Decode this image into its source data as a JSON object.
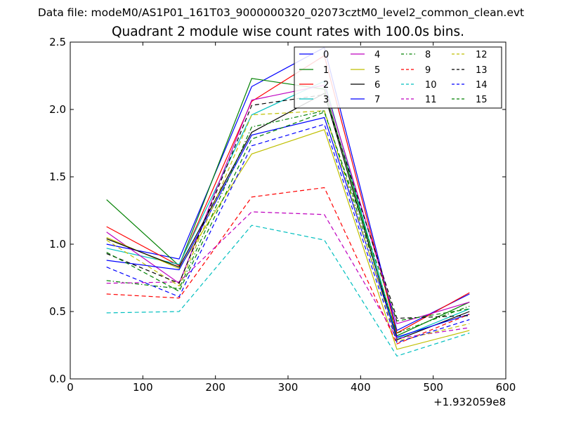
{
  "suptitle": "Data file: modeM0/AS1P01_161T03_9000000320_02073cztM0_level2_common_clean.evt",
  "chart_data": {
    "type": "line",
    "title": "Quadrant 2 module wise count rates with 100.0s bins.",
    "xlabel": "",
    "ylabel": "",
    "x_offset_label": "+1.932059e8",
    "xlim": [
      0,
      600
    ],
    "ylim": [
      0.0,
      2.5
    ],
    "xticks": [
      "0",
      "100",
      "200",
      "300",
      "400",
      "500",
      "600"
    ],
    "yticks": [
      "0.0",
      "0.5",
      "1.0",
      "1.5",
      "2.0",
      "2.5"
    ],
    "grid": false,
    "legend_position": "top-right",
    "legend_columns": 4,
    "x": [
      50,
      150,
      250,
      350,
      450,
      550
    ],
    "series": [
      {
        "name": "0",
        "color": "#0000ff",
        "dash": "solid",
        "values": [
          1.0,
          0.89,
          2.17,
          2.46,
          0.36,
          0.63
        ]
      },
      {
        "name": "1",
        "color": "#008000",
        "dash": "solid",
        "values": [
          1.33,
          0.84,
          2.23,
          2.15,
          0.32,
          0.57
        ]
      },
      {
        "name": "2",
        "color": "#ff0000",
        "dash": "solid",
        "values": [
          1.13,
          0.84,
          2.06,
          2.4,
          0.34,
          0.64
        ]
      },
      {
        "name": "3",
        "color": "#00bfbf",
        "dash": "solid",
        "values": [
          0.97,
          0.85,
          1.96,
          2.21,
          0.3,
          0.52
        ]
      },
      {
        "name": "4",
        "color": "#bf00bf",
        "dash": "solid",
        "values": [
          1.09,
          0.71,
          2.07,
          2.18,
          0.41,
          0.57
        ]
      },
      {
        "name": "5",
        "color": "#bfbf00",
        "dash": "solid",
        "values": [
          1.05,
          0.82,
          1.67,
          1.85,
          0.22,
          0.36
        ]
      },
      {
        "name": "6",
        "color": "#000000",
        "dash": "solid",
        "values": [
          1.04,
          0.83,
          1.83,
          2.12,
          0.29,
          0.5
        ]
      },
      {
        "name": "7",
        "color": "#0000ff",
        "dash": "solid",
        "values": [
          0.88,
          0.81,
          1.81,
          1.94,
          0.31,
          0.48
        ]
      },
      {
        "name": "8",
        "color": "#008000",
        "dash": "dashdot",
        "values": [
          0.73,
          0.67,
          1.87,
          1.99,
          0.34,
          0.54
        ]
      },
      {
        "name": "9",
        "color": "#ff0000",
        "dash": "dashed",
        "values": [
          0.63,
          0.6,
          1.35,
          1.42,
          0.26,
          0.48
        ]
      },
      {
        "name": "10",
        "color": "#00bfbf",
        "dash": "dashed",
        "values": [
          0.49,
          0.5,
          1.14,
          1.03,
          0.17,
          0.34
        ]
      },
      {
        "name": "11",
        "color": "#bf00bf",
        "dash": "dashed",
        "values": [
          0.71,
          0.72,
          1.24,
          1.22,
          0.3,
          0.38
        ]
      },
      {
        "name": "12",
        "color": "#bfbf00",
        "dash": "dashed",
        "values": [
          1.03,
          0.69,
          1.96,
          1.99,
          0.28,
          0.41
        ]
      },
      {
        "name": "13",
        "color": "#000000",
        "dash": "dashed",
        "values": [
          0.93,
          0.71,
          2.03,
          2.11,
          0.45,
          0.47
        ]
      },
      {
        "name": "14",
        "color": "#0000ff",
        "dash": "dashed",
        "values": [
          0.83,
          0.61,
          1.73,
          1.89,
          0.27,
          0.44
        ]
      },
      {
        "name": "15",
        "color": "#008000",
        "dash": "dashed",
        "values": [
          0.94,
          0.65,
          1.78,
          1.98,
          0.43,
          0.52
        ]
      }
    ]
  }
}
